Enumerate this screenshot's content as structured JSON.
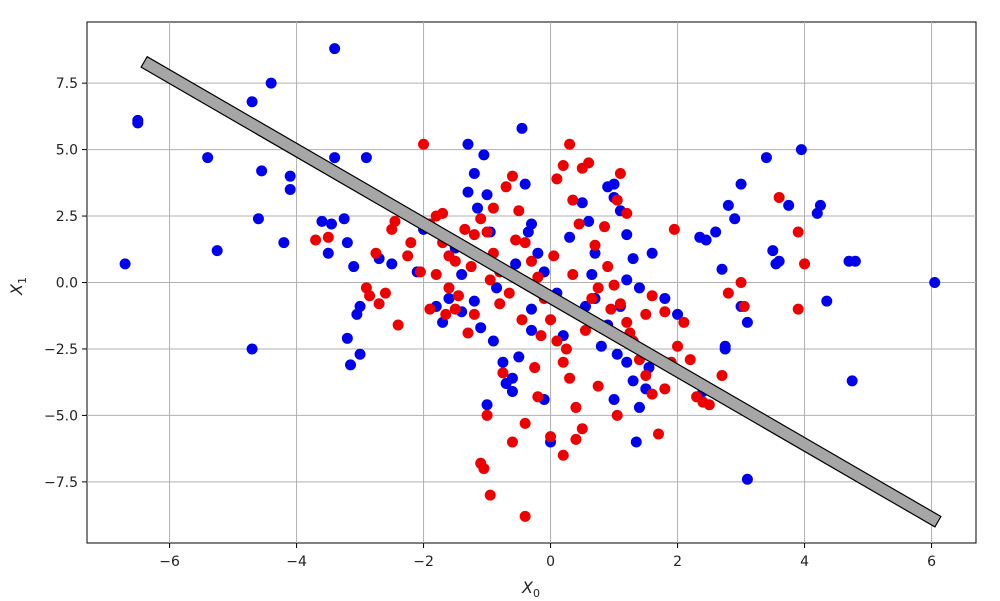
{
  "chart_data": {
    "type": "scatter",
    "title": "",
    "xlabel": "X",
    "xlabel_sub": "0",
    "ylabel": "X",
    "ylabel_sub": "1",
    "xlim": [
      -7.3,
      6.7
    ],
    "ylim": [
      -9.8,
      9.8
    ],
    "xticks": [
      -6,
      -4,
      -2,
      0,
      2,
      4,
      6
    ],
    "yticks": [
      7.5,
      5.0,
      2.5,
      0.0,
      -2.5,
      -5.0,
      -7.5
    ],
    "xtick_labels": [
      "−6",
      "−4",
      "−2",
      "0",
      "2",
      "4",
      "6"
    ],
    "ytick_labels": [
      "7.5",
      "5.0",
      "2.5",
      "0.0",
      "−2.5",
      "−5.0",
      "−7.5"
    ],
    "grid": true,
    "colors": {
      "blue": "#0000ee",
      "red": "#ee0000",
      "line_fill": "#a6a6a6",
      "line_edge": "#000000"
    },
    "boundary_line": {
      "x": [
        -6.4,
        6.1
      ],
      "y": [
        8.3,
        -9.0
      ]
    },
    "series": [
      {
        "color": "#0000ee",
        "points": [
          [
            -6.7,
            0.7
          ],
          [
            -6.5,
            6.0
          ],
          [
            -6.5,
            6.1
          ],
          [
            -5.4,
            4.7
          ],
          [
            -5.25,
            1.2
          ],
          [
            -4.7,
            6.8
          ],
          [
            -4.4,
            7.5
          ],
          [
            -4.55,
            4.2
          ],
          [
            -4.6,
            2.4
          ],
          [
            -4.7,
            -2.5
          ],
          [
            -4.2,
            1.5
          ],
          [
            -4.1,
            4.0
          ],
          [
            -4.1,
            3.5
          ],
          [
            -3.4,
            8.8
          ],
          [
            -3.4,
            4.7
          ],
          [
            -3.6,
            2.3
          ],
          [
            -3.45,
            2.2
          ],
          [
            -3.5,
            1.1
          ],
          [
            -3.25,
            2.4
          ],
          [
            -3.2,
            1.5
          ],
          [
            -3.1,
            0.6
          ],
          [
            -3.05,
            -1.2
          ],
          [
            -3.0,
            -0.9
          ],
          [
            -3.2,
            -2.1
          ],
          [
            -3.15,
            -3.1
          ],
          [
            -3.0,
            -2.7
          ],
          [
            -2.9,
            4.7
          ],
          [
            -2.7,
            0.9
          ],
          [
            -2.5,
            0.7
          ],
          [
            -2.0,
            2.0
          ],
          [
            -2.1,
            0.4
          ],
          [
            -1.8,
            -0.9
          ],
          [
            -1.7,
            -1.5
          ],
          [
            -1.6,
            -0.6
          ],
          [
            -1.5,
            1.3
          ],
          [
            -1.4,
            -1.1
          ],
          [
            -1.4,
            0.3
          ],
          [
            -1.3,
            3.4
          ],
          [
            -1.3,
            5.2
          ],
          [
            -1.2,
            4.1
          ],
          [
            -1.15,
            2.8
          ],
          [
            -1.05,
            4.8
          ],
          [
            -1.0,
            3.3
          ],
          [
            -0.95,
            1.9
          ],
          [
            -0.9,
            0.7
          ],
          [
            -0.85,
            -0.2
          ],
          [
            -1.2,
            -0.7
          ],
          [
            -1.1,
            -1.7
          ],
          [
            -0.9,
            -2.2
          ],
          [
            -0.75,
            -3.0
          ],
          [
            -0.7,
            -3.8
          ],
          [
            -0.6,
            -4.1
          ],
          [
            -0.45,
            5.8
          ],
          [
            -0.4,
            3.7
          ],
          [
            -0.3,
            2.2
          ],
          [
            -0.2,
            1.1
          ],
          [
            -0.1,
            0.4
          ],
          [
            -0.3,
            -1.0
          ],
          [
            -0.3,
            -1.8
          ],
          [
            -0.5,
            -2.8
          ],
          [
            -0.1,
            -4.4
          ],
          [
            0.0,
            -6.0
          ],
          [
            0.2,
            -2.0
          ],
          [
            0.3,
            -1.0
          ],
          [
            0.3,
            1.7
          ],
          [
            0.5,
            3.0
          ],
          [
            0.6,
            2.3
          ],
          [
            0.7,
            1.1
          ],
          [
            0.65,
            0.3
          ],
          [
            0.7,
            -0.6
          ],
          [
            0.75,
            -1.6
          ],
          [
            0.8,
            -2.4
          ],
          [
            0.9,
            3.6
          ],
          [
            1.0,
            3.7
          ],
          [
            1.0,
            3.2
          ],
          [
            1.1,
            2.7
          ],
          [
            1.2,
            1.8
          ],
          [
            1.3,
            0.9
          ],
          [
            1.2,
            0.1
          ],
          [
            1.1,
            -0.9
          ],
          [
            0.9,
            -1.6
          ],
          [
            1.05,
            -2.7
          ],
          [
            1.3,
            -3.7
          ],
          [
            1.55,
            -3.2
          ],
          [
            1.5,
            -4.0
          ],
          [
            1.4,
            -4.7
          ],
          [
            1.35,
            -6.0
          ],
          [
            1.6,
            1.1
          ],
          [
            1.8,
            -0.6
          ],
          [
            2.0,
            -1.2
          ],
          [
            2.35,
            1.7
          ],
          [
            2.45,
            1.6
          ],
          [
            2.6,
            1.9
          ],
          [
            2.7,
            0.5
          ],
          [
            2.75,
            -2.4
          ],
          [
            2.75,
            -2.5
          ],
          [
            2.8,
            2.9
          ],
          [
            2.9,
            2.4
          ],
          [
            3.0,
            3.7
          ],
          [
            3.0,
            -0.9
          ],
          [
            3.1,
            -1.5
          ],
          [
            3.4,
            4.7
          ],
          [
            3.5,
            1.2
          ],
          [
            3.55,
            0.7
          ],
          [
            3.6,
            0.8
          ],
          [
            3.75,
            2.9
          ],
          [
            3.95,
            5.0
          ],
          [
            4.2,
            2.6
          ],
          [
            4.25,
            2.9
          ],
          [
            4.35,
            -0.7
          ],
          [
            4.7,
            0.8
          ],
          [
            4.8,
            0.8
          ],
          [
            4.75,
            -3.7
          ],
          [
            6.05,
            0.0
          ],
          [
            2.4,
            -4.1
          ],
          [
            1.0,
            -4.4
          ],
          [
            1.2,
            -3.0
          ],
          [
            -0.6,
            -3.6
          ],
          [
            -1.0,
            -4.6
          ],
          [
            3.1,
            -7.4
          ],
          [
            -0.35,
            1.9
          ],
          [
            0.1,
            -0.4
          ],
          [
            0.45,
            -1.2
          ],
          [
            -0.55,
            0.7
          ],
          [
            1.4,
            -0.2
          ],
          [
            0.55,
            -0.9
          ]
        ]
      },
      {
        "color": "#ee0000",
        "points": [
          [
            -3.7,
            1.6
          ],
          [
            -3.5,
            1.7
          ],
          [
            -2.9,
            -0.2
          ],
          [
            -2.85,
            -0.5
          ],
          [
            -2.75,
            1.1
          ],
          [
            -2.6,
            -0.4
          ],
          [
            -2.7,
            -0.8
          ],
          [
            -2.4,
            -1.6
          ],
          [
            -2.5,
            2.0
          ],
          [
            -2.3,
            2.6
          ],
          [
            -2.2,
            1.5
          ],
          [
            -2.0,
            5.2
          ],
          [
            -1.9,
            2.2
          ],
          [
            -1.8,
            2.5
          ],
          [
            -1.7,
            2.6
          ],
          [
            -1.7,
            1.5
          ],
          [
            -1.6,
            1.0
          ],
          [
            -1.5,
            0.8
          ],
          [
            -1.8,
            0.3
          ],
          [
            -1.6,
            -0.2
          ],
          [
            -1.5,
            -1.0
          ],
          [
            -1.3,
            -1.9
          ],
          [
            -1.2,
            -1.2
          ],
          [
            -1.2,
            1.8
          ],
          [
            -1.1,
            2.4
          ],
          [
            -1.0,
            1.9
          ],
          [
            -0.9,
            2.8
          ],
          [
            -0.9,
            1.1
          ],
          [
            -0.8,
            0.4
          ],
          [
            -0.8,
            -0.8
          ],
          [
            -0.7,
            3.6
          ],
          [
            -0.6,
            4.0
          ],
          [
            -0.5,
            2.7
          ],
          [
            -0.4,
            1.5
          ],
          [
            -0.3,
            0.8
          ],
          [
            -0.2,
            0.2
          ],
          [
            -0.1,
            -0.6
          ],
          [
            0.0,
            -1.4
          ],
          [
            0.1,
            -2.2
          ],
          [
            0.2,
            -3.0
          ],
          [
            0.3,
            -3.6
          ],
          [
            0.4,
            -4.7
          ],
          [
            0.2,
            -6.5
          ],
          [
            0.4,
            -5.9
          ],
          [
            -0.2,
            -4.3
          ],
          [
            -0.4,
            -5.3
          ],
          [
            -0.6,
            -6.0
          ],
          [
            -1.1,
            -6.8
          ],
          [
            -1.05,
            -7.0
          ],
          [
            -0.95,
            -8.0
          ],
          [
            -0.4,
            -8.8
          ],
          [
            0.0,
            -5.8
          ],
          [
            -1.0,
            -5.0
          ],
          [
            0.1,
            3.9
          ],
          [
            0.2,
            4.4
          ],
          [
            0.35,
            3.1
          ],
          [
            0.45,
            2.2
          ],
          [
            0.5,
            4.3
          ],
          [
            0.6,
            4.5
          ],
          [
            0.3,
            5.2
          ],
          [
            0.7,
            1.4
          ],
          [
            0.9,
            0.6
          ],
          [
            1.0,
            -0.1
          ],
          [
            1.1,
            -0.8
          ],
          [
            1.2,
            -1.5
          ],
          [
            1.3,
            -2.2
          ],
          [
            1.4,
            -2.9
          ],
          [
            1.5,
            -3.5
          ],
          [
            1.6,
            -4.2
          ],
          [
            1.7,
            -5.7
          ],
          [
            1.8,
            -4.0
          ],
          [
            1.9,
            -3.0
          ],
          [
            2.0,
            -2.4
          ],
          [
            2.1,
            -1.5
          ],
          [
            2.2,
            -2.9
          ],
          [
            2.3,
            -4.3
          ],
          [
            2.4,
            -4.5
          ],
          [
            2.5,
            -4.6
          ],
          [
            2.7,
            -3.5
          ],
          [
            2.8,
            -0.4
          ],
          [
            3.0,
            0.0
          ],
          [
            3.05,
            -0.9
          ],
          [
            3.6,
            3.2
          ],
          [
            3.9,
            1.9
          ],
          [
            4.0,
            0.7
          ],
          [
            3.9,
            -1.0
          ],
          [
            1.5,
            -1.2
          ],
          [
            1.6,
            -0.5
          ],
          [
            1.8,
            -1.1
          ],
          [
            1.95,
            2.0
          ],
          [
            0.85,
            2.1
          ],
          [
            1.05,
            3.1
          ],
          [
            1.1,
            4.1
          ],
          [
            1.2,
            2.6
          ],
          [
            0.75,
            -0.2
          ],
          [
            0.55,
            -1.8
          ],
          [
            0.25,
            -2.5
          ],
          [
            -0.15,
            -2.0
          ],
          [
            -0.45,
            -1.4
          ],
          [
            -0.65,
            -0.4
          ],
          [
            -0.95,
            0.1
          ],
          [
            -1.25,
            0.6
          ],
          [
            -1.45,
            -0.5
          ],
          [
            -1.65,
            -1.2
          ],
          [
            -1.9,
            -1.0
          ],
          [
            -2.05,
            0.4
          ],
          [
            -2.25,
            1.0
          ],
          [
            -2.45,
            2.3
          ],
          [
            -1.35,
            2.0
          ],
          [
            -0.55,
            1.6
          ],
          [
            0.05,
            1.0
          ],
          [
            0.35,
            0.3
          ],
          [
            0.65,
            -0.6
          ],
          [
            0.95,
            -1.0
          ],
          [
            1.25,
            -1.9
          ],
          [
            -0.25,
            -3.2
          ],
          [
            0.75,
            -3.9
          ],
          [
            1.05,
            -5.0
          ],
          [
            0.5,
            -5.5
          ],
          [
            -0.75,
            -3.4
          ]
        ]
      }
    ]
  }
}
